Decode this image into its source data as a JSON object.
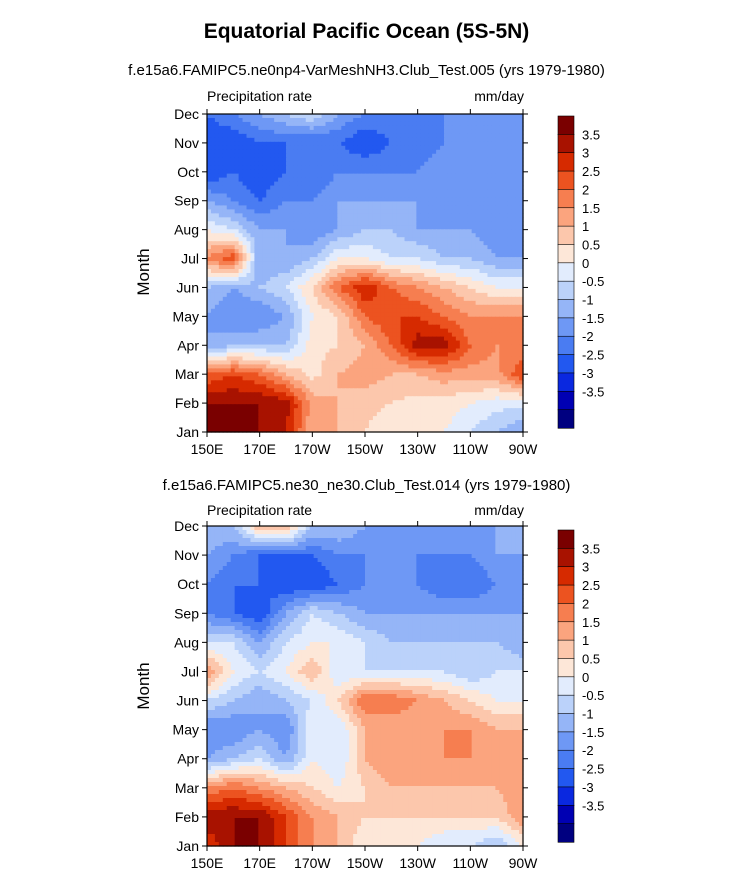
{
  "title": "Equatorial Pacific Ocean (5S-5N)",
  "colorbar_colors": [
    "#000080",
    "#0000b3",
    "#0a28e0",
    "#2258f0",
    "#4a7cf2",
    "#6e98f5",
    "#95b5f7",
    "#bbd2fa",
    "#e2ecfd",
    "#fde7d8",
    "#fcc7ac",
    "#fba47e",
    "#f67e50",
    "#ec5320",
    "#d62a00",
    "#a81200",
    "#7a0000"
  ],
  "chart_data": [
    {
      "type": "heatmap",
      "title": "f.e15a6.FAMIPC5.ne0np4-VarMeshNH3.Club_Test.005 (yrs 1979-1980)",
      "variable": "Precipitation rate",
      "units": "mm/day",
      "ylabel": "Month",
      "x_ticks": [
        "150E",
        "170E",
        "170W",
        "150W",
        "130W",
        "110W",
        "90W"
      ],
      "y_ticks": [
        "Jan",
        "Feb",
        "Mar",
        "Apr",
        "May",
        "Jun",
        "Jul",
        "Aug",
        "Sep",
        "Oct",
        "Nov",
        "Dec"
      ],
      "colorbar_levels": [
        "3.5",
        "3",
        "2.5",
        "2",
        "1.5",
        "1",
        "0.5",
        "0",
        "-0.5",
        "-1",
        "-1.5",
        "-2",
        "-2.5",
        "-3",
        "-3.5"
      ],
      "x_lon": [
        150,
        160,
        170,
        180,
        190,
        200,
        210,
        220,
        230,
        240,
        250,
        260,
        270
      ],
      "values": [
        [
          4.0,
          4.0,
          4.0,
          3.5,
          1.5,
          1.5,
          1.0,
          0.5,
          0.5,
          0.5,
          0.0,
          -0.5,
          -1.0
        ],
        [
          4.0,
          4.0,
          4.0,
          3.8,
          1.8,
          1.5,
          1.2,
          1.0,
          0.8,
          0.8,
          0.5,
          0.2,
          0.2
        ],
        [
          2.5,
          3.0,
          2.5,
          1.5,
          0.8,
          1.5,
          1.8,
          1.5,
          1.5,
          1.8,
          1.8,
          1.8,
          3.0
        ],
        [
          -1.0,
          -0.5,
          -0.5,
          -0.5,
          0.8,
          1.0,
          1.5,
          2.5,
          3.8,
          3.8,
          2.5,
          2.0,
          2.0
        ],
        [
          -1.0,
          -1.5,
          -1.5,
          -1.0,
          0.5,
          1.0,
          2.5,
          3.0,
          3.0,
          2.5,
          2.0,
          2.0,
          2.0
        ],
        [
          -0.5,
          -1.0,
          -0.5,
          0.0,
          1.0,
          2.5,
          3.5,
          2.5,
          2.0,
          1.5,
          1.0,
          0.5,
          0.5
        ],
        [
          2.0,
          3.0,
          -1.0,
          -1.0,
          -0.5,
          0.5,
          0.5,
          0.0,
          0.0,
          -0.5,
          -0.5,
          -1.0,
          -1.0
        ],
        [
          0.5,
          0.0,
          -1.0,
          -1.0,
          -1.5,
          -1.0,
          -0.5,
          -0.5,
          -1.0,
          -1.0,
          -1.0,
          -1.5,
          -1.5
        ],
        [
          -1.0,
          -1.5,
          -2.0,
          -1.5,
          -1.5,
          -1.0,
          -1.0,
          -1.0,
          -1.0,
          -1.5,
          -1.5,
          -1.5,
          -1.5
        ],
        [
          -2.5,
          -2.0,
          -2.5,
          -2.0,
          -2.0,
          -1.5,
          -1.5,
          -1.5,
          -1.5,
          -1.0,
          -1.0,
          -1.5,
          -1.5
        ],
        [
          -2.5,
          -2.5,
          -2.0,
          -2.0,
          -2.0,
          -2.0,
          -2.5,
          -2.0,
          -2.0,
          -1.5,
          -1.5,
          -1.5,
          -1.5
        ],
        [
          -2.0,
          -1.5,
          -1.0,
          -0.5,
          0.0,
          -1.0,
          -1.5,
          -1.5,
          -1.5,
          -1.5,
          -1.5,
          -1.5,
          -1.5
        ]
      ]
    },
    {
      "type": "heatmap",
      "title": "f.e15a6.FAMIPC5.ne30_ne30.Club_Test.014 (yrs 1979-1980)",
      "variable": "Precipitation rate",
      "units": "mm/day",
      "ylabel": "Month",
      "x_ticks": [
        "150E",
        "170E",
        "170W",
        "150W",
        "130W",
        "110W",
        "90W"
      ],
      "y_ticks": [
        "Jan",
        "Feb",
        "Mar",
        "Apr",
        "May",
        "Jun",
        "Jul",
        "Aug",
        "Sep",
        "Oct",
        "Nov",
        "Dec"
      ],
      "colorbar_levels": [
        "3.5",
        "3",
        "2.5",
        "2",
        "1.5",
        "1",
        "0.5",
        "0",
        "-0.5",
        "-1",
        "-1.5",
        "-2",
        "-2.5",
        "-3",
        "-3.5"
      ],
      "x_lon": [
        150,
        160,
        170,
        180,
        190,
        200,
        210,
        220,
        230,
        240,
        250,
        260,
        270
      ],
      "values": [
        [
          3.0,
          4.0,
          4.0,
          3.0,
          2.0,
          1.5,
          0.5,
          0.5,
          0.5,
          0.0,
          0.0,
          -0.5,
          0.5
        ],
        [
          4.0,
          4.0,
          4.0,
          3.0,
          2.0,
          1.5,
          1.0,
          1.0,
          1.0,
          1.0,
          1.0,
          1.0,
          2.0
        ],
        [
          2.0,
          2.5,
          2.0,
          1.5,
          1.0,
          0.5,
          1.0,
          1.5,
          1.5,
          1.5,
          1.5,
          1.5,
          2.0
        ],
        [
          -1.0,
          -0.5,
          0.0,
          -1.0,
          0.5,
          0.0,
          1.5,
          2.0,
          2.0,
          2.0,
          2.0,
          2.0,
          1.5
        ],
        [
          -1.5,
          -1.5,
          -1.0,
          -1.5,
          0.5,
          0.0,
          1.5,
          1.5,
          1.5,
          2.0,
          2.0,
          1.5,
          1.5
        ],
        [
          0.0,
          -0.5,
          -1.0,
          -0.5,
          0.0,
          1.0,
          2.5,
          2.5,
          2.0,
          1.5,
          1.0,
          0.5,
          0.5
        ],
        [
          2.0,
          0.5,
          0.0,
          0.5,
          1.5,
          0.0,
          0.0,
          0.0,
          0.0,
          0.0,
          -0.5,
          0.0,
          0.0
        ],
        [
          0.0,
          0.0,
          -1.0,
          0.0,
          0.5,
          0.5,
          0.0,
          -0.5,
          -0.5,
          -0.5,
          -0.5,
          -0.5,
          -1.0
        ],
        [
          -1.5,
          -2.0,
          -2.5,
          -1.0,
          0.0,
          -0.5,
          -1.0,
          -1.0,
          -1.0,
          -1.0,
          -1.0,
          -1.0,
          -1.0
        ],
        [
          -1.5,
          -2.0,
          -2.0,
          -2.5,
          -2.5,
          -2.0,
          -1.5,
          -1.5,
          -1.5,
          -2.0,
          -2.0,
          -1.5,
          -1.5
        ],
        [
          -1.0,
          -1.5,
          -2.0,
          -2.0,
          -2.0,
          -1.5,
          -1.5,
          -1.5,
          -1.5,
          -1.5,
          -1.5,
          -1.0,
          -1.0
        ],
        [
          -0.5,
          -0.5,
          1.5,
          1.5,
          -0.5,
          -0.5,
          -1.0,
          -1.0,
          -1.0,
          -1.0,
          -1.0,
          -1.0,
          -1.0
        ]
      ]
    }
  ]
}
